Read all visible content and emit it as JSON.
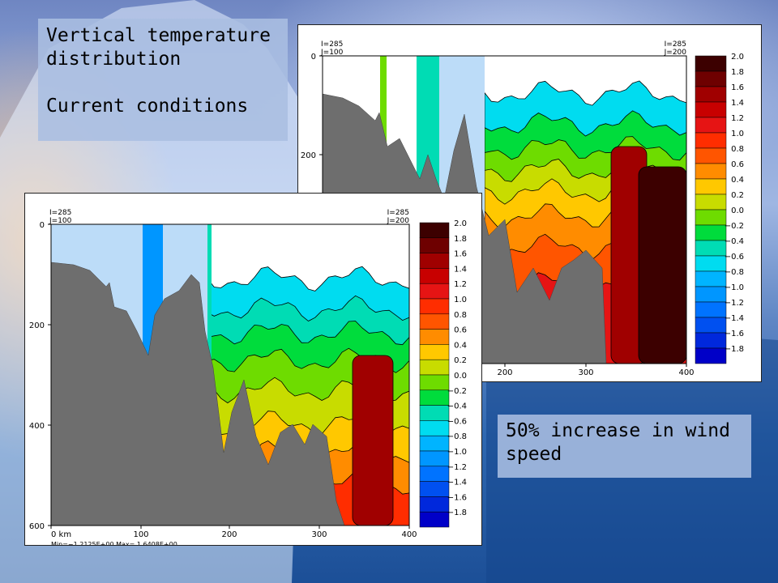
{
  "slide": {
    "title_line1": "Vertical temperature",
    "title_line2": "distribution",
    "caption_current": "Current conditions",
    "caption_wind": "50% increase in wind speed"
  },
  "chart_data": [
    {
      "type": "heatmap",
      "name": "current",
      "corner_left": [
        "I=285",
        "J=100"
      ],
      "corner_right": [
        "I=285",
        "J=200"
      ],
      "xlim": [
        0,
        400
      ],
      "x_ticks": [
        "200",
        "300",
        "400"
      ],
      "y_ticks": [
        "0",
        "200"
      ],
      "colorbar_levels": [
        "2.0",
        "1.8",
        "1.6",
        "1.4",
        "1.2",
        "1.0",
        "0.8",
        "0.6",
        "0.4",
        "0.2",
        "0.0",
        "−0.2",
        "−0.4",
        "−0.6",
        "−0.8",
        "−1.0",
        "−1.2",
        "−1.4",
        "−1.6",
        "−1.8"
      ],
      "colorbar_colors": [
        "#3c0000",
        "#6e0000",
        "#a00000",
        "#c80000",
        "#e61414",
        "#ff2d00",
        "#ff5500",
        "#ff8c00",
        "#ffc800",
        "#c8dc00",
        "#6edc00",
        "#00dc3c",
        "#00dcb4",
        "#00dcf0",
        "#00b4ff",
        "#0096ff",
        "#0073ff",
        "#0050f0",
        "#0028dc",
        "#0000c8"
      ]
    },
    {
      "type": "heatmap",
      "name": "wind_plus_50",
      "corner_left": [
        "I=285",
        "J=100"
      ],
      "corner_right": [
        "I=285",
        "J=200"
      ],
      "xlim": [
        0,
        400
      ],
      "x_ticks": [
        "0 km",
        "100",
        "200",
        "300",
        "400"
      ],
      "y_ticks": [
        "0",
        "200",
        "400",
        "600"
      ],
      "stats": "Min=−1.2125E+00   Max= 1.6408E+00",
      "colorbar_levels": [
        "2.0",
        "1.8",
        "1.6",
        "1.4",
        "1.2",
        "1.0",
        "0.8",
        "0.6",
        "0.4",
        "0.2",
        "0.0",
        "−0.2",
        "−0.4",
        "−0.6",
        "−0.8",
        "−1.0",
        "−1.2",
        "−1.4",
        "−1.6",
        "−1.8"
      ],
      "colorbar_colors": [
        "#3c0000",
        "#6e0000",
        "#a00000",
        "#c80000",
        "#e61414",
        "#ff2d00",
        "#ff5500",
        "#ff8c00",
        "#ffc800",
        "#c8dc00",
        "#6edc00",
        "#00dc3c",
        "#00dcb4",
        "#00dcf0",
        "#00b4ff",
        "#0096ff",
        "#0073ff",
        "#0050f0",
        "#0028dc",
        "#0000c8"
      ]
    }
  ]
}
